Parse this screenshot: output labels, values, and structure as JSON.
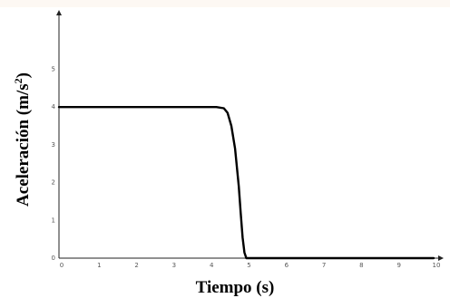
{
  "chart_data": {
    "type": "line",
    "title": "",
    "xlabel": "Tiempo (s)",
    "ylabel_main": "Aceleración (m/s",
    "ylabel_sup": "2",
    "ylabel_close": ")",
    "xlim": [
      0,
      10
    ],
    "ylim": [
      0,
      6
    ],
    "x_ticks": [
      "0",
      "1",
      "2",
      "3",
      "4",
      "5",
      "6",
      "7",
      "8",
      "9",
      "10"
    ],
    "y_ticks": [
      "0",
      "1",
      "2",
      "3",
      "4",
      "5"
    ],
    "grid": false,
    "series": [
      {
        "x": [
          0,
          4.0,
          4.2,
          4.4,
          4.5,
          4.6,
          4.7,
          4.8,
          4.85,
          4.9,
          4.95,
          5.0,
          10.0
        ],
        "y": [
          4.0,
          4.0,
          4.0,
          3.97,
          3.85,
          3.5,
          2.9,
          1.9,
          1.2,
          0.55,
          0.15,
          0.0,
          0.0
        ],
        "color": "#000000"
      }
    ]
  }
}
